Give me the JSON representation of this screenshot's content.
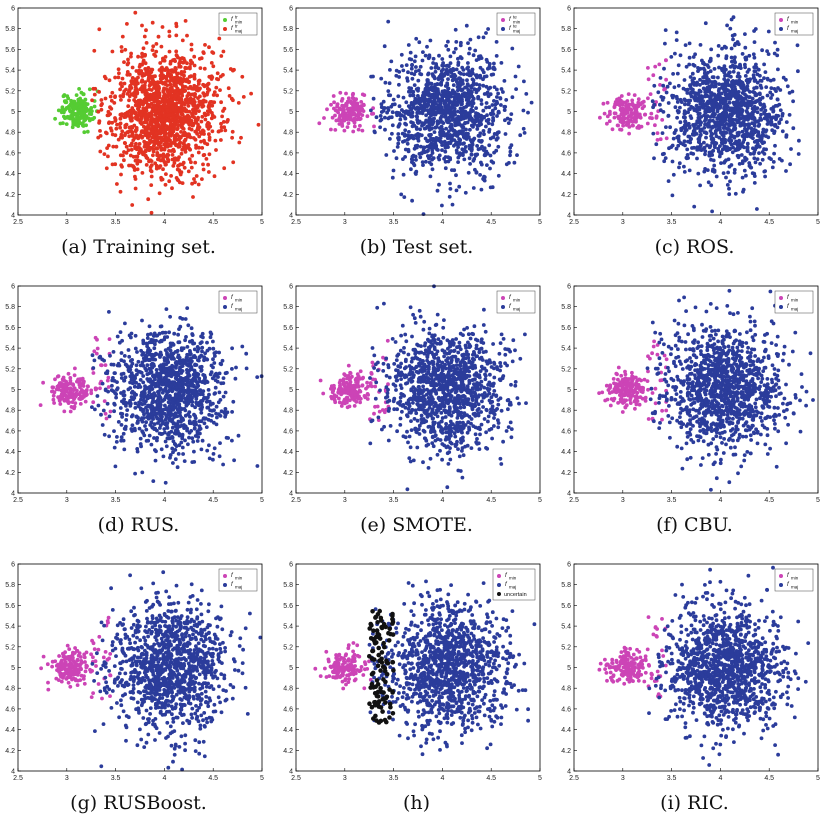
{
  "colors": {
    "min": "#cc44b6",
    "maj": "#2b3c9b",
    "train_min": "#55cc33",
    "train_maj": "#e23322",
    "uncertain": "#111111",
    "axis": "#000000"
  },
  "chart_data": [
    {
      "type": "scatter",
      "panel": "a",
      "caption": "(a) Training set.",
      "xlim": [
        2.5,
        5
      ],
      "ylim": [
        4,
        6
      ],
      "xticks": [
        "2.5",
        "3",
        "3.5",
        "4",
        "4.5",
        "5"
      ],
      "yticks": [
        "4",
        "4.2",
        "4.4",
        "4.6",
        "4.8",
        "5",
        "5.2",
        "5.4",
        "5.6",
        "5.8",
        "6"
      ],
      "legend": [
        {
          "sym": "f",
          "sup": "tr",
          "sub": "min",
          "color": "train_min"
        },
        {
          "sym": "f",
          "sup": "tr",
          "sub": "maj",
          "color": "train_maj"
        }
      ],
      "series": [
        {
          "color": "train_min",
          "cluster": {
            "center": [
              3.1,
              5.0
            ],
            "spread": [
              0.08,
              0.08
            ],
            "count": 180
          }
        },
        {
          "color": "train_maj",
          "cluster": {
            "center": [
              4.0,
              5.0
            ],
            "spread": [
              0.28,
              0.3
            ],
            "count": 1500
          }
        }
      ]
    },
    {
      "type": "scatter",
      "panel": "b",
      "caption": "(b) Test set.",
      "xlim": [
        2.5,
        5
      ],
      "ylim": [
        4,
        6
      ],
      "xticks": [
        "2.5",
        "3",
        "3.5",
        "4",
        "4.5",
        "5"
      ],
      "yticks": [
        "4",
        "4.2",
        "4.4",
        "4.6",
        "4.8",
        "5",
        "5.2",
        "5.4",
        "5.6",
        "5.8",
        "6"
      ],
      "legend": [
        {
          "sym": "f",
          "sup": "te",
          "sub": "min",
          "color": "min"
        },
        {
          "sym": "f",
          "sup": "te",
          "sub": "maj",
          "color": "maj"
        }
      ],
      "series": [
        {
          "color": "min",
          "cluster": {
            "center": [
              3.05,
              5.0
            ],
            "spread": [
              0.1,
              0.08
            ],
            "count": 160
          }
        },
        {
          "color": "maj",
          "cluster": {
            "center": [
              4.05,
              5.0
            ],
            "spread": [
              0.3,
              0.3
            ],
            "count": 1200
          }
        }
      ]
    },
    {
      "type": "scatter",
      "panel": "c",
      "caption": "(c) ROS.",
      "xlim": [
        2.5,
        5
      ],
      "ylim": [
        4,
        6
      ],
      "xticks": [
        "2.5",
        "3",
        "3.5",
        "4",
        "4.5",
        "5"
      ],
      "yticks": [
        "4",
        "4.2",
        "4.4",
        "4.6",
        "4.8",
        "5",
        "5.2",
        "5.4",
        "5.6",
        "5.8",
        "6"
      ],
      "legend": [
        {
          "sym": "f",
          "sup": "",
          "sub": "min",
          "color": "min"
        },
        {
          "sym": "f",
          "sup": "",
          "sub": "maj",
          "color": "maj"
        }
      ],
      "series": [
        {
          "color": "min",
          "cluster": {
            "center": [
              3.05,
              5.0
            ],
            "spread": [
              0.1,
              0.08
            ],
            "count": 160
          },
          "fringe": {
            "x": [
              3.25,
              3.45
            ],
            "y": [
              4.7,
              5.5
            ],
            "count": 25
          }
        },
        {
          "color": "maj",
          "cluster": {
            "center": [
              4.05,
              5.0
            ],
            "spread": [
              0.3,
              0.3
            ],
            "count": 1200
          }
        }
      ]
    },
    {
      "type": "scatter",
      "panel": "d",
      "caption": "(d) RUS.",
      "xlim": [
        2.5,
        5
      ],
      "ylim": [
        4,
        6
      ],
      "xticks": [
        "2.5",
        "3",
        "3.5",
        "4",
        "4.5",
        "5"
      ],
      "yticks": [
        "4",
        "4.2",
        "4.4",
        "4.6",
        "4.8",
        "5",
        "5.2",
        "5.4",
        "5.6",
        "5.8",
        "6"
      ],
      "legend": [
        {
          "sym": "f",
          "sup": "",
          "sub": "min",
          "color": "min"
        },
        {
          "sym": "f",
          "sup": "",
          "sub": "maj",
          "color": "maj"
        }
      ],
      "series": [
        {
          "color": "min",
          "cluster": {
            "center": [
              3.05,
              5.0
            ],
            "spread": [
              0.1,
              0.08
            ],
            "count": 160
          },
          "fringe": {
            "x": [
              3.25,
              3.45
            ],
            "y": [
              4.7,
              5.5
            ],
            "count": 25
          }
        },
        {
          "color": "maj",
          "cluster": {
            "center": [
              4.05,
              5.0
            ],
            "spread": [
              0.3,
              0.3
            ],
            "count": 1200
          }
        }
      ]
    },
    {
      "type": "scatter",
      "panel": "e",
      "caption": "(e) SMOTE.",
      "xlim": [
        2.5,
        5
      ],
      "ylim": [
        4,
        6
      ],
      "xticks": [
        "2.5",
        "3",
        "3.5",
        "4",
        "4.5",
        "5"
      ],
      "yticks": [
        "4",
        "4.2",
        "4.4",
        "4.6",
        "4.8",
        "5",
        "5.2",
        "5.4",
        "5.6",
        "5.8",
        "6"
      ],
      "legend": [
        {
          "sym": "f",
          "sup": "",
          "sub": "min",
          "color": "min"
        },
        {
          "sym": "f",
          "sup": "",
          "sub": "maj",
          "color": "maj"
        }
      ],
      "series": [
        {
          "color": "min",
          "cluster": {
            "center": [
              3.05,
              5.0
            ],
            "spread": [
              0.1,
              0.08
            ],
            "count": 160
          },
          "fringe": {
            "x": [
              3.25,
              3.45
            ],
            "y": [
              4.7,
              5.5
            ],
            "count": 25
          }
        },
        {
          "color": "maj",
          "cluster": {
            "center": [
              4.05,
              5.0
            ],
            "spread": [
              0.3,
              0.3
            ],
            "count": 1200
          }
        }
      ]
    },
    {
      "type": "scatter",
      "panel": "f",
      "caption": "(f) CBU.",
      "xlim": [
        2.5,
        5
      ],
      "ylim": [
        4,
        6
      ],
      "xticks": [
        "2.5",
        "3",
        "3.5",
        "4",
        "4.5",
        "5"
      ],
      "yticks": [
        "4",
        "4.2",
        "4.4",
        "4.6",
        "4.8",
        "5",
        "5.2",
        "5.4",
        "5.6",
        "5.8",
        "6"
      ],
      "legend": [
        {
          "sym": "f",
          "sup": "",
          "sub": "min",
          "color": "min"
        },
        {
          "sym": "f",
          "sup": "",
          "sub": "maj",
          "color": "maj"
        }
      ],
      "series": [
        {
          "color": "min",
          "cluster": {
            "center": [
              3.05,
              5.0
            ],
            "spread": [
              0.1,
              0.08
            ],
            "count": 160
          },
          "fringe": {
            "x": [
              3.25,
              3.45
            ],
            "y": [
              4.7,
              5.5
            ],
            "count": 25
          }
        },
        {
          "color": "maj",
          "cluster": {
            "center": [
              4.05,
              5.0
            ],
            "spread": [
              0.3,
              0.3
            ],
            "count": 1200
          }
        }
      ]
    },
    {
      "type": "scatter",
      "panel": "g",
      "caption": "(g) RUSBoost.",
      "xlim": [
        2.5,
        5
      ],
      "ylim": [
        4,
        6
      ],
      "xticks": [
        "2.5",
        "3",
        "3.5",
        "4",
        "4.5",
        "5"
      ],
      "yticks": [
        "4",
        "4.2",
        "4.4",
        "4.6",
        "4.8",
        "5",
        "5.2",
        "5.4",
        "5.6",
        "5.8",
        "6"
      ],
      "legend": [
        {
          "sym": "f",
          "sup": "",
          "sub": "min",
          "color": "min"
        },
        {
          "sym": "f",
          "sup": "",
          "sub": "maj",
          "color": "maj"
        }
      ],
      "series": [
        {
          "color": "min",
          "cluster": {
            "center": [
              3.05,
              5.0
            ],
            "spread": [
              0.1,
              0.08
            ],
            "count": 160
          },
          "fringe": {
            "x": [
              3.25,
              3.45
            ],
            "y": [
              4.7,
              5.5
            ],
            "count": 25
          }
        },
        {
          "color": "maj",
          "cluster": {
            "center": [
              4.05,
              5.0
            ],
            "spread": [
              0.3,
              0.3
            ],
            "count": 1200
          }
        }
      ]
    },
    {
      "type": "scatter",
      "panel": "h",
      "caption": "(h)",
      "xlim": [
        2.5,
        5
      ],
      "ylim": [
        4,
        6
      ],
      "xticks": [
        "2.5",
        "3",
        "3.5",
        "4",
        "4.5",
        "5"
      ],
      "yticks": [
        "4",
        "4.2",
        "4.4",
        "4.6",
        "4.8",
        "5",
        "5.2",
        "5.4",
        "5.6",
        "5.8",
        "6"
      ],
      "legend": [
        {
          "sym": "f",
          "sup": "",
          "sub": "min",
          "color": "min"
        },
        {
          "sym": "f",
          "sup": "",
          "sub": "maj",
          "color": "maj"
        },
        {
          "sym": "",
          "sup": "",
          "sub": "",
          "label": "uncertain",
          "color": "uncertain"
        }
      ],
      "series": [
        {
          "color": "min",
          "cluster": {
            "center": [
              3.0,
              5.0
            ],
            "spread": [
              0.1,
              0.08
            ],
            "count": 140
          }
        },
        {
          "color": "maj",
          "cluster": {
            "center": [
              4.05,
              5.0
            ],
            "spread": [
              0.3,
              0.3
            ],
            "count": 1200
          }
        },
        {
          "color": "uncertain",
          "fringe": {
            "x": [
              3.25,
              3.5
            ],
            "y": [
              4.45,
              5.55
            ],
            "count": 110
          }
        }
      ]
    },
    {
      "type": "scatter",
      "panel": "i",
      "caption": "(i) RIC.",
      "xlim": [
        2.5,
        5
      ],
      "ylim": [
        4,
        6
      ],
      "xticks": [
        "2.5",
        "3",
        "3.5",
        "4",
        "4.5",
        "5"
      ],
      "yticks": [
        "4",
        "4.2",
        "4.4",
        "4.6",
        "4.8",
        "5",
        "5.2",
        "5.4",
        "5.6",
        "5.8",
        "6"
      ],
      "legend": [
        {
          "sym": "f",
          "sup": "",
          "sub": "min",
          "color": "min"
        },
        {
          "sym": "f",
          "sup": "",
          "sub": "maj",
          "color": "maj"
        }
      ],
      "series": [
        {
          "color": "min",
          "cluster": {
            "center": [
              3.05,
              5.0
            ],
            "spread": [
              0.1,
              0.08
            ],
            "count": 160
          },
          "fringe": {
            "x": [
              3.25,
              3.45
            ],
            "y": [
              4.7,
              5.5
            ],
            "count": 25
          }
        },
        {
          "color": "maj",
          "cluster": {
            "center": [
              4.05,
              5.0
            ],
            "spread": [
              0.3,
              0.3
            ],
            "count": 1200
          }
        }
      ]
    }
  ]
}
